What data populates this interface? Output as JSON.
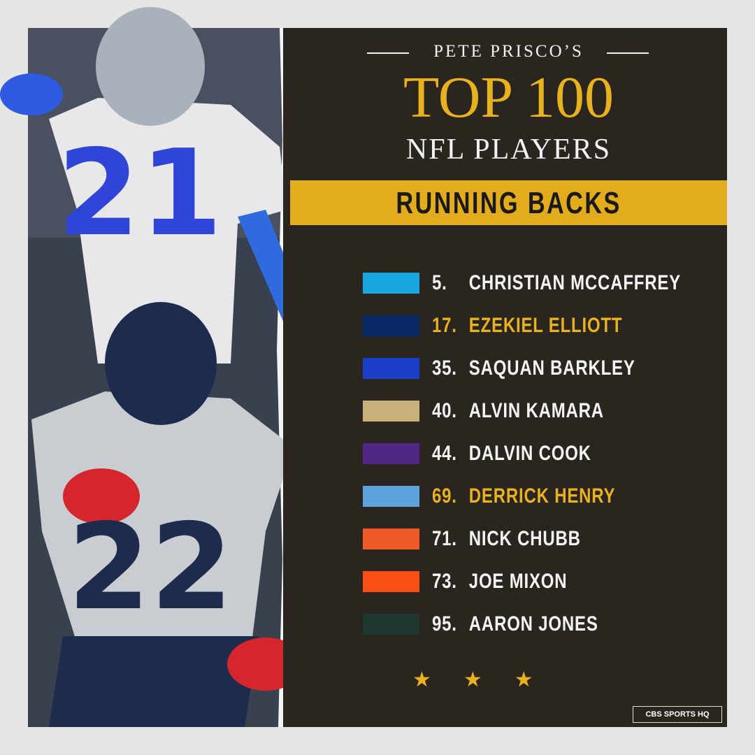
{
  "header": {
    "kicker": "PETE PRISCO’S",
    "title": "TOP 100",
    "subtitle": "NFL PLAYERS"
  },
  "banner": "RUNNING BACKS",
  "players": [
    {
      "rank": "5.",
      "name": "CHRISTIAN MCCAFFREY",
      "highlight": false
    },
    {
      "rank": "17.",
      "name": "EZEKIEL ELLIOTT",
      "highlight": true
    },
    {
      "rank": "35.",
      "name": "SAQUAN BARKLEY",
      "highlight": false
    },
    {
      "rank": "40.",
      "name": "ALVIN KAMARA",
      "highlight": false
    },
    {
      "rank": "44.",
      "name": "DALVIN COOK",
      "highlight": false
    },
    {
      "rank": "69.",
      "name": "DERRICK HENRY",
      "highlight": true
    },
    {
      "rank": "71.",
      "name": "NICK CHUBB",
      "highlight": false
    },
    {
      "rank": "73.",
      "name": "JOE MIXON",
      "highlight": false
    },
    {
      "rank": "95.",
      "name": "AARON JONES",
      "highlight": false
    }
  ],
  "photo": {
    "numbers": [
      "21",
      "22"
    ]
  },
  "footer": "CBS SPORTS HQ"
}
